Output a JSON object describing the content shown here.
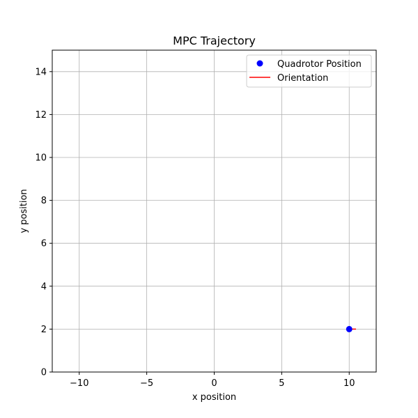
{
  "chart_data": {
    "type": "scatter",
    "title": "MPC Trajectory",
    "xlabel": "x position",
    "ylabel": "y position",
    "xlim": [
      -12,
      12
    ],
    "ylim": [
      0,
      15
    ],
    "xticks": [
      -10,
      -5,
      0,
      5,
      10
    ],
    "xtick_labels": [
      "−10",
      "−5",
      "0",
      "5",
      "10"
    ],
    "yticks": [
      0,
      2,
      4,
      6,
      8,
      10,
      12,
      14
    ],
    "ytick_labels": [
      "0",
      "2",
      "4",
      "6",
      "8",
      "10",
      "12",
      "14"
    ],
    "grid": true,
    "legend_position": "top-right",
    "series": [
      {
        "name": "Quadrotor Position",
        "kind": "marker",
        "color": "#0000ff",
        "points": [
          {
            "x": 10,
            "y": 2
          }
        ]
      },
      {
        "name": "Orientation",
        "kind": "line",
        "color": "#ff0000",
        "points": [
          {
            "x": 10,
            "y": 2
          },
          {
            "x": 10.5,
            "y": 2
          }
        ]
      }
    ]
  }
}
